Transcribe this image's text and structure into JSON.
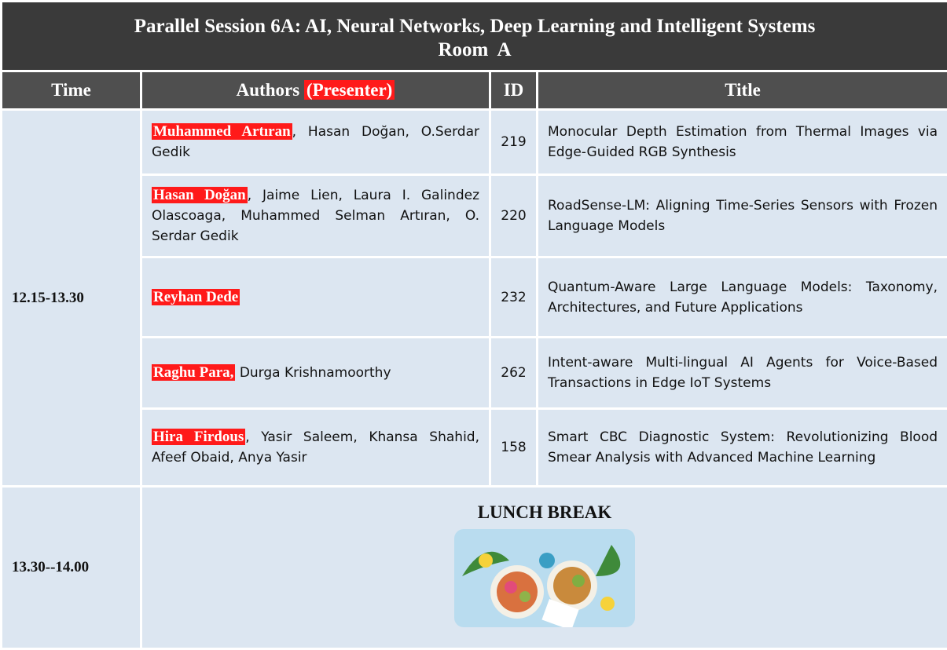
{
  "header": {
    "title": "Parallel Session 6A: AI, Neural Networks, Deep Learning and Intelligent Systems",
    "room": "Room  A"
  },
  "columns": {
    "time": "Time",
    "authors": "Authors",
    "presenter": "(Presenter)",
    "id": "ID",
    "title": "Title"
  },
  "sessions": [
    {
      "time": "12.15-13.30",
      "papers": [
        {
          "presenter": "Muhammed Artıran",
          "coauthors": ", Hasan Doğan, O.Serdar Gedik",
          "id": 219,
          "title": "Monocular Depth Estimation from Thermal Images via Edge-Guided RGB Synthesis"
        },
        {
          "presenter": "Hasan Doğan",
          "coauthors": ", Jaime Lien, Laura I. Galindez Olascoaga, Muhammed Selman Artıran, O. Serdar Gedik",
          "id": 220,
          "title": "RoadSense-LM: Aligning Time-Series Sensors with Frozen Language Models"
        },
        {
          "presenter": "Reyhan Dede",
          "coauthors": null,
          "id": 232,
          "title": "Quantum-Aware Large Language Models: Taxonomy, Architectures, and Future Applications"
        },
        {
          "presenter": "Raghu Para,",
          "coauthors": "Durga Krishnamoorthy",
          "id": 262,
          "title": "Intent-aware Multi-lingual AI Agents for Voice-Based Transactions in Edge IoT Systems"
        },
        {
          "presenter": "Hira Firdous",
          "coauthors": ", Yasir Saleem, Khansa Shahid, Afeef Obaid, Anya Yasir",
          "id": 158,
          "title": "Smart CBC Diagnostic System: Revolutionizing Blood Smear Analysis with Advanced Machine Learning"
        }
      ]
    },
    {
      "time": "13.30--14.00",
      "label": "LUNCH BREAK"
    }
  ]
}
